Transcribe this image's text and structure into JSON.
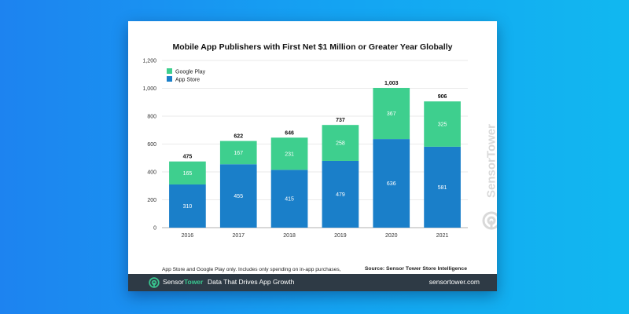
{
  "footnote": "App Store and Google Play only. Includes only spending on in-app purchases, subscriptions, and premium apps processed through the app stores.",
  "source": "Source: Sensor Tower Store Intelligence",
  "watermark": "SensorTower",
  "footer": {
    "brand_prefix": "Sensor",
    "brand_suffix": "Tower",
    "tagline": "Data That Drives App Growth",
    "url": "sensortower.com"
  },
  "colors": {
    "google_play": "#3ecf8e",
    "app_store": "#1a7fc9",
    "footer_bg": "#2e3a45",
    "brand_green": "#39c68f"
  },
  "chart_data": {
    "type": "bar",
    "stacked": true,
    "title": "Mobile App Publishers with First Net $1 Million or Greater Year Globally",
    "categories": [
      "2016",
      "2017",
      "2018",
      "2019",
      "2020",
      "2021"
    ],
    "series": [
      {
        "name": "App Store",
        "values": [
          310,
          455,
          415,
          479,
          636,
          581
        ]
      },
      {
        "name": "Google Play",
        "values": [
          165,
          167,
          231,
          258,
          367,
          325
        ]
      }
    ],
    "totals": [
      475,
      622,
      646,
      737,
      1003,
      906
    ],
    "total_labels": [
      "475",
      "622",
      "646",
      "737",
      "1,003",
      "906"
    ],
    "ylim": [
      0,
      1200
    ],
    "yticks": [
      0,
      200,
      400,
      600,
      800,
      1000,
      1200
    ],
    "ytick_labels": [
      "0",
      "200",
      "400",
      "600",
      "800",
      "1,000",
      "1,200"
    ],
    "legend": {
      "position": "top-left",
      "entries": [
        "Google Play",
        "App Store"
      ]
    },
    "grid": true
  }
}
